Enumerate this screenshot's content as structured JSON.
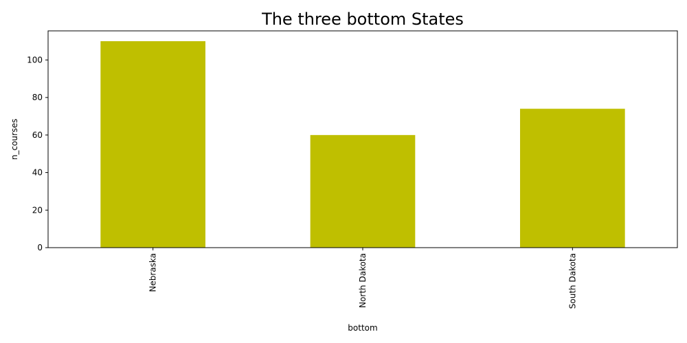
{
  "chart_data": {
    "type": "bar",
    "title": "The three bottom States",
    "xlabel": "bottom",
    "ylabel": "n_courses",
    "categories": [
      "Nebraska",
      "North Dakota",
      "South Dakota"
    ],
    "values": [
      110,
      60,
      74
    ],
    "ylim": [
      0,
      115.5
    ],
    "yticks": [
      0,
      20,
      40,
      60,
      80,
      100
    ],
    "ytick_labels": [
      "0",
      "20",
      "40",
      "60",
      "80",
      "100"
    ],
    "bar_color": "#bfbf00",
    "grid": false,
    "legend": "none"
  }
}
